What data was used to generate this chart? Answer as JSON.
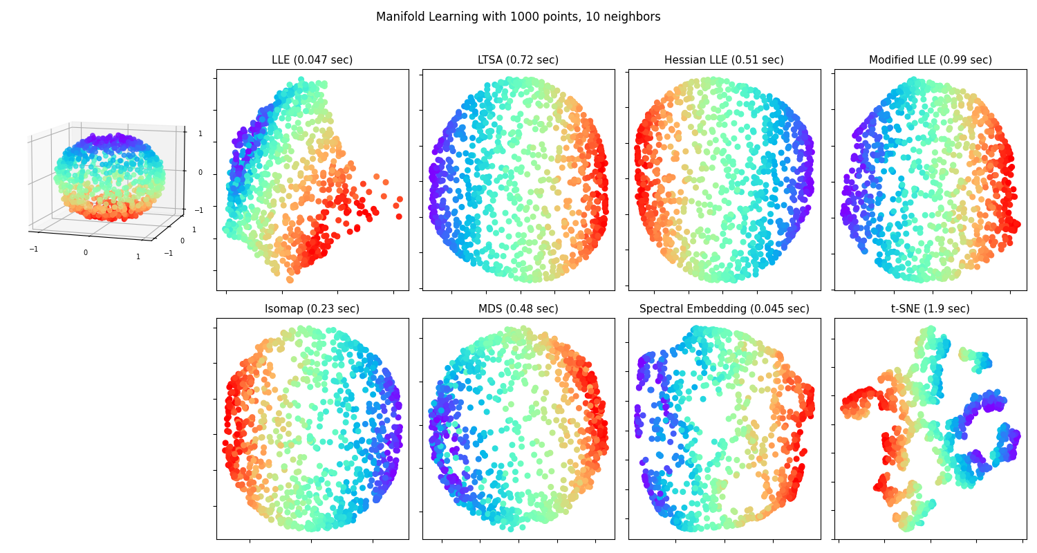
{
  "title": "Manifold Learning with 1000 points, 10 neighbors",
  "n_points": 1000,
  "n_neighbors": 10,
  "random_state": 0,
  "figsize": [
    15.0,
    8.0
  ],
  "dpi": 100,
  "point_size": 30,
  "title_fontsize": 12,
  "subplot_title_fontsize": 11,
  "background_color": "#ffffff",
  "methods": [
    {
      "name": "LLE",
      "time": "0.047 sec"
    },
    {
      "name": "LTSA",
      "time": "0.72 sec"
    },
    {
      "name": "Hessian LLE",
      "time": "0.51 sec"
    },
    {
      "name": "Modified LLE",
      "time": "0.99 sec"
    },
    {
      "name": "Isomap",
      "time": "0.23 sec"
    },
    {
      "name": "MDS",
      "time": "0.48 sec"
    },
    {
      "name": "Spectral Embedding",
      "time": "0.045 sec"
    },
    {
      "name": "t-SNE",
      "time": "1.9 sec"
    }
  ]
}
